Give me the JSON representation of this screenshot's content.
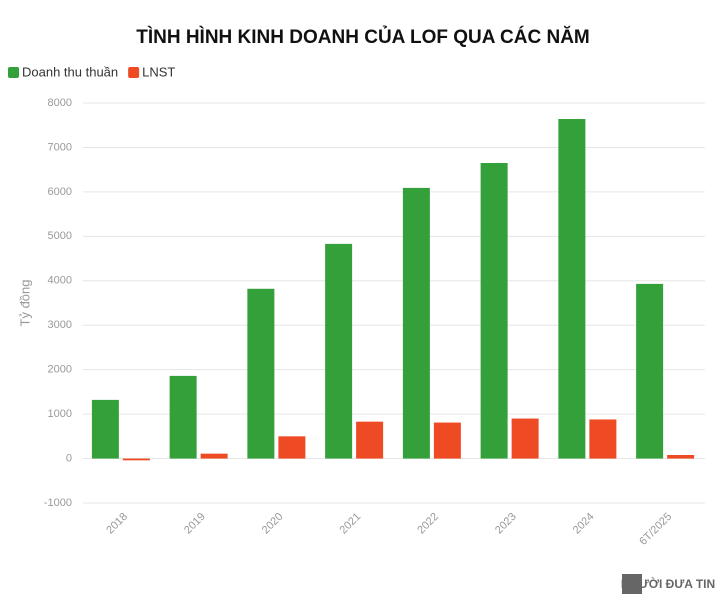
{
  "chart_data": {
    "type": "bar",
    "title": "TÌNH HÌNH KINH DOANH CỦA LOF QUA CÁC NĂM",
    "y_label": "Tỷ đồng",
    "categories": [
      "2018",
      "2019",
      "2020",
      "2021",
      "2022",
      "2023",
      "2024",
      "6T/2025"
    ],
    "series": [
      {
        "name": "Doanh thu thuần",
        "color": "#34a03a",
        "values": [
          1320,
          1860,
          3820,
          4830,
          6090,
          6650,
          7640,
          3930
        ]
      },
      {
        "name": "LNST",
        "color": "#ee4a23",
        "values": [
          -40,
          110,
          500,
          830,
          810,
          900,
          880,
          80
        ]
      }
    ],
    "ylim": [
      -1000,
      8000
    ],
    "yticks": [
      -1000,
      0,
      1000,
      2000,
      3000,
      4000,
      5000,
      6000,
      7000,
      8000
    ],
    "grid": true,
    "legend": "top-left",
    "watermark": "NGƯỜI ĐƯA TIN"
  }
}
